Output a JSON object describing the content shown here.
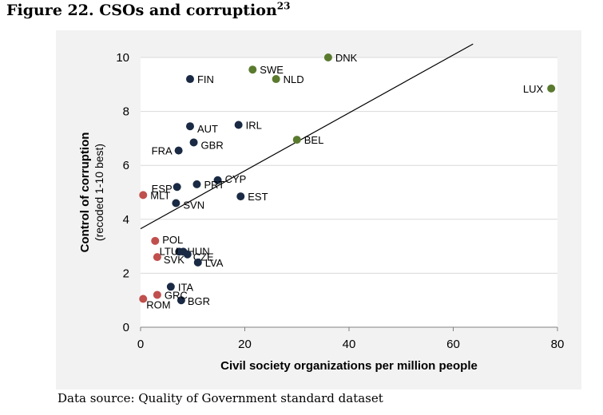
{
  "figure": {
    "title": "Figure 22. CSOs and corruption",
    "title_superscript": "23",
    "source": "Data source: Quality of Government standard dataset"
  },
  "colors": {
    "panel_background": "#f2f2f2",
    "plot_background": "#ffffff",
    "gridline": "#d9d9d9",
    "navy": "#1a2a44",
    "green": "#5a7a2e",
    "red": "#c0504d",
    "trend_line": "#000000"
  },
  "chart_data": {
    "type": "scatter",
    "title": "",
    "xlabel": "Civil society organizations per million people",
    "ylabel": "Control of corruption",
    "ylabel_sub": "(recoded 1-10 best)",
    "xlim": [
      0,
      80
    ],
    "ylim": [
      0,
      10
    ],
    "x_ticks": [
      0,
      20,
      40,
      60,
      80
    ],
    "y_ticks": [
      0,
      2,
      4,
      6,
      8,
      10
    ],
    "grid": "horizontal",
    "legend": "none",
    "trend_line": {
      "x": [
        0,
        63.8
      ],
      "y": [
        3.65,
        10.5
      ]
    },
    "points": [
      {
        "label": "DNK",
        "x": 36.0,
        "y": 10.0,
        "group": "green"
      },
      {
        "label": "SWE",
        "x": 21.5,
        "y": 9.55,
        "group": "green"
      },
      {
        "label": "NLD",
        "x": 26.0,
        "y": 9.2,
        "group": "green"
      },
      {
        "label": "LUX",
        "x": 78.8,
        "y": 8.85,
        "group": "green"
      },
      {
        "label": "BEL",
        "x": 30.0,
        "y": 6.95,
        "group": "green"
      },
      {
        "label": "FIN",
        "x": 9.5,
        "y": 9.2,
        "group": "navy"
      },
      {
        "label": "AUT",
        "x": 9.5,
        "y": 7.45,
        "group": "navy"
      },
      {
        "label": "IRL",
        "x": 18.8,
        "y": 7.5,
        "group": "navy"
      },
      {
        "label": "GBR",
        "x": 10.2,
        "y": 6.85,
        "group": "navy"
      },
      {
        "label": "FRA",
        "x": 7.3,
        "y": 6.55,
        "group": "navy"
      },
      {
        "label": "CYP",
        "x": 14.8,
        "y": 5.45,
        "group": "navy"
      },
      {
        "label": "PRT",
        "x": 10.8,
        "y": 5.3,
        "group": "navy"
      },
      {
        "label": "ESP",
        "x": 7.0,
        "y": 5.2,
        "group": "navy"
      },
      {
        "label": "EST",
        "x": 19.2,
        "y": 4.85,
        "group": "navy"
      },
      {
        "label": "SVN",
        "x": 6.8,
        "y": 4.6,
        "group": "navy"
      },
      {
        "label": "HUN",
        "x": 8.2,
        "y": 2.8,
        "group": "navy"
      },
      {
        "label": "LTU",
        "x": 7.4,
        "y": 2.8,
        "group": "navy"
      },
      {
        "label": "CZE",
        "x": 9.0,
        "y": 2.7,
        "group": "navy"
      },
      {
        "label": "LVA",
        "x": 11.0,
        "y": 2.4,
        "group": "navy"
      },
      {
        "label": "ITA",
        "x": 5.8,
        "y": 1.5,
        "group": "navy"
      },
      {
        "label": "BGR",
        "x": 7.8,
        "y": 1.0,
        "group": "navy"
      },
      {
        "label": "MLT",
        "x": 0.5,
        "y": 4.9,
        "group": "red"
      },
      {
        "label": "POL",
        "x": 2.8,
        "y": 3.2,
        "group": "red"
      },
      {
        "label": "SVK",
        "x": 3.2,
        "y": 2.6,
        "group": "red"
      },
      {
        "label": "GRC",
        "x": 3.2,
        "y": 1.2,
        "group": "red"
      },
      {
        "label": "ROM",
        "x": 0.5,
        "y": 1.05,
        "group": "red"
      }
    ]
  }
}
